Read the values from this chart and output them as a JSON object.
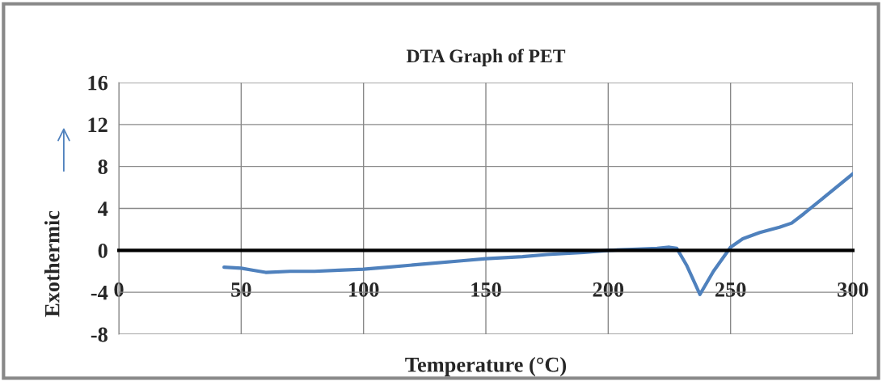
{
  "chart_data": {
    "type": "line",
    "title": "DTA Graph of PET",
    "xlabel": "Temperature (°C)",
    "ylabel": "Exothermic",
    "series": [
      {
        "color": "#4f81bd",
        "x": [
          43,
          50,
          55,
          60,
          70,
          80,
          90,
          100,
          110,
          125,
          140,
          150,
          165,
          175,
          190,
          200,
          210,
          220,
          225,
          228,
          232,
          237.5,
          243,
          250,
          255,
          262,
          270,
          275,
          280,
          290,
          300
        ],
        "values": [
          -1.6,
          -1.7,
          -1.9,
          -2.1,
          -2.0,
          -2.0,
          -1.9,
          -1.8,
          -1.6,
          -1.3,
          -1.0,
          -0.8,
          -0.6,
          -0.4,
          -0.2,
          0.0,
          0.1,
          0.2,
          0.3,
          0.2,
          -1.4,
          -4.2,
          -2.0,
          0.3,
          1.1,
          1.7,
          2.2,
          2.6,
          3.5,
          5.4,
          7.3
        ]
      }
    ],
    "xlim": [
      0,
      300
    ],
    "xticks": [
      0,
      50,
      100,
      150,
      200,
      250,
      300
    ],
    "ylim": [
      -8,
      16
    ],
    "yticks": [
      -8,
      -4,
      0,
      4,
      8,
      12,
      16
    ],
    "grid": true,
    "marker": "none",
    "line_style": "solid"
  }
}
